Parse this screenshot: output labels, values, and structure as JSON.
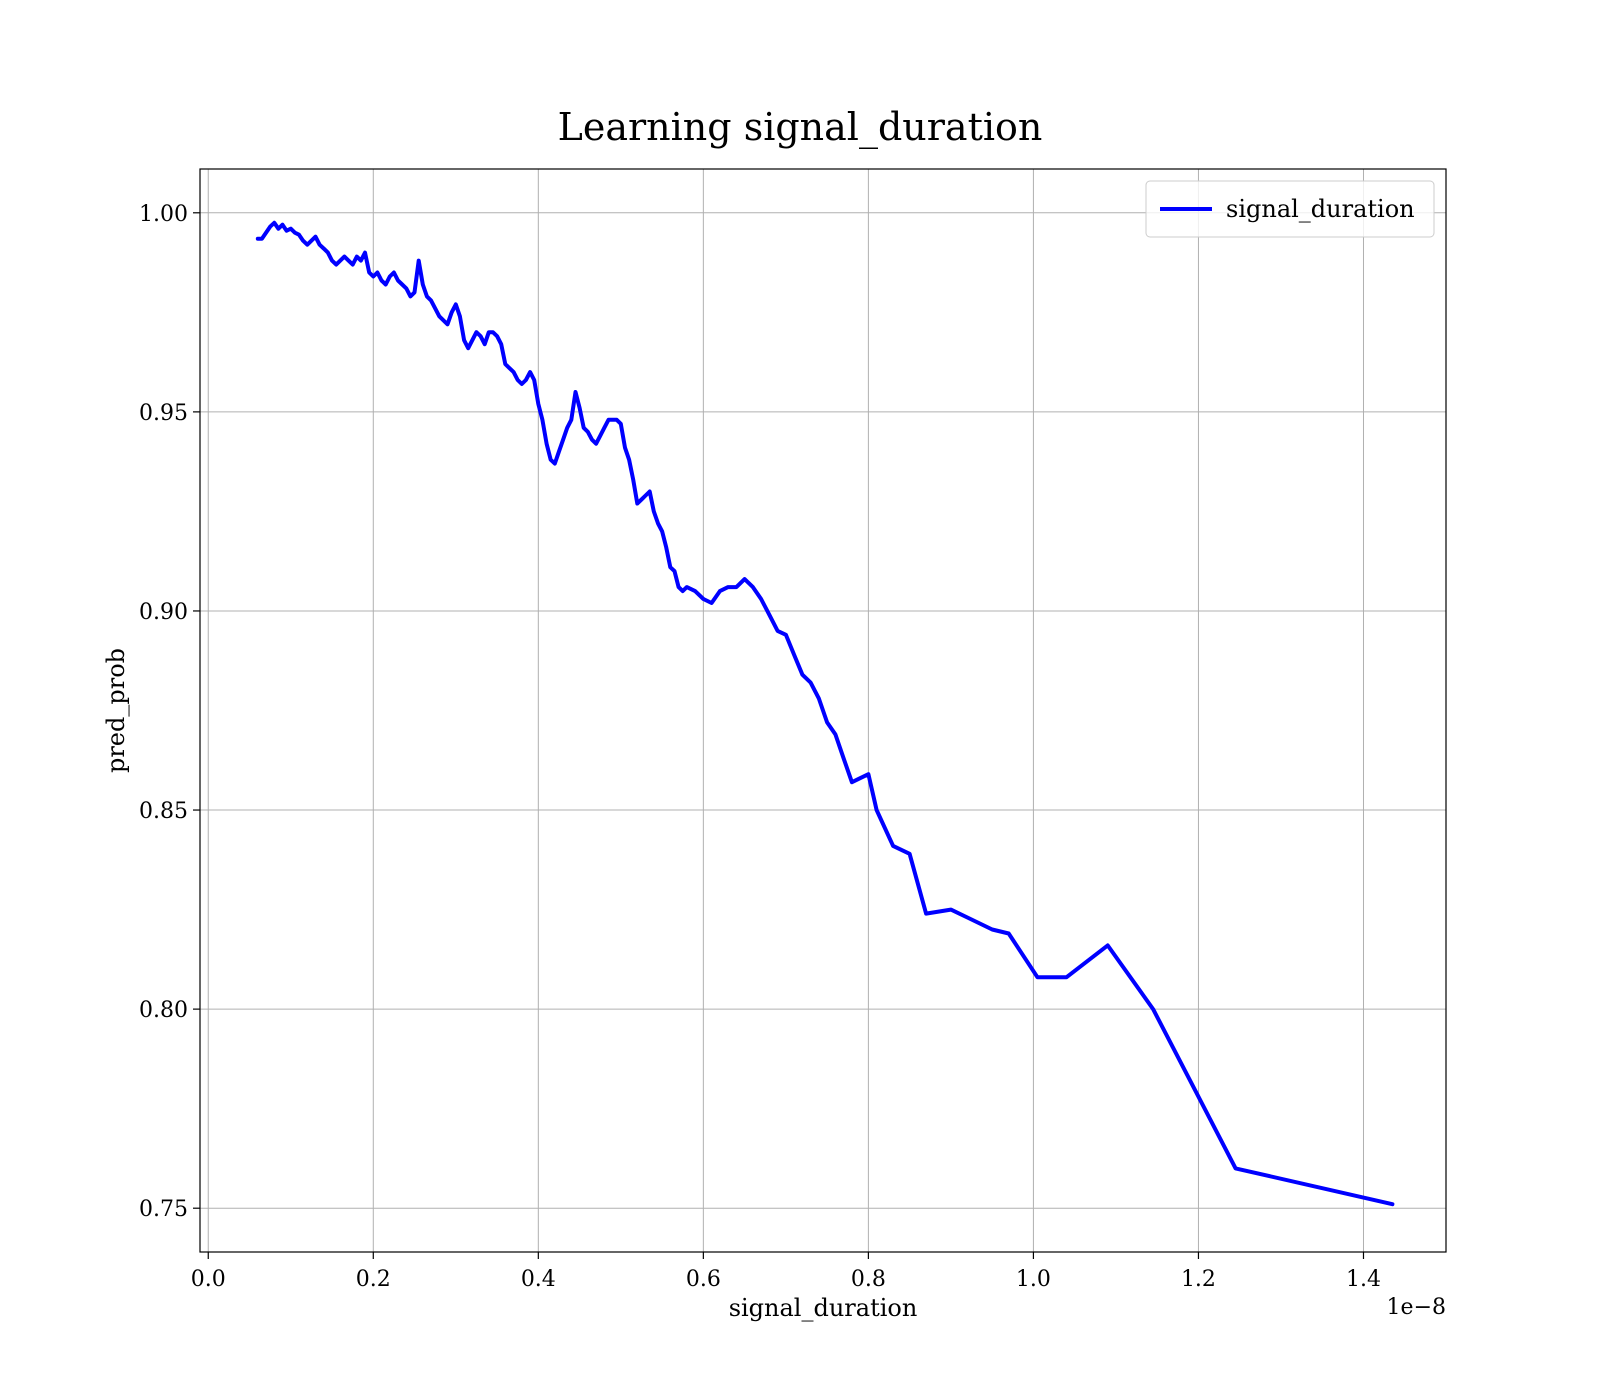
{
  "chart_data": {
    "type": "line",
    "title": "Learning signal_duration",
    "xlabel": "signal_duration",
    "ylabel": "pred_prob",
    "x_offset_text": "1e−8",
    "xlim": [
      -0.01,
      1.5
    ],
    "ylim": [
      0.739,
      1.011
    ],
    "x_ticks": [
      0.0,
      0.2,
      0.4,
      0.6,
      0.8,
      1.0,
      1.2,
      1.4
    ],
    "x_tick_labels": [
      "0.0",
      "0.2",
      "0.4",
      "0.6",
      "0.8",
      "1.0",
      "1.2",
      "1.4"
    ],
    "y_ticks": [
      0.75,
      0.8,
      0.85,
      0.9,
      0.95,
      1.0
    ],
    "y_tick_labels": [
      "0.75",
      "0.80",
      "0.85",
      "0.90",
      "0.95",
      "1.00"
    ],
    "grid": true,
    "legend": {
      "position": "top-right",
      "entries": [
        "signal_duration"
      ]
    },
    "series": [
      {
        "name": "signal_duration",
        "color": "#0000ff",
        "x": [
          0.06,
          0.065,
          0.07,
          0.075,
          0.08,
          0.085,
          0.09,
          0.095,
          0.1,
          0.105,
          0.11,
          0.115,
          0.12,
          0.125,
          0.13,
          0.135,
          0.14,
          0.145,
          0.15,
          0.155,
          0.16,
          0.165,
          0.17,
          0.175,
          0.18,
          0.185,
          0.19,
          0.195,
          0.2,
          0.205,
          0.21,
          0.215,
          0.22,
          0.225,
          0.23,
          0.235,
          0.24,
          0.245,
          0.25,
          0.255,
          0.26,
          0.265,
          0.27,
          0.275,
          0.28,
          0.285,
          0.29,
          0.295,
          0.3,
          0.305,
          0.31,
          0.315,
          0.32,
          0.325,
          0.33,
          0.335,
          0.34,
          0.345,
          0.35,
          0.355,
          0.36,
          0.365,
          0.37,
          0.375,
          0.38,
          0.385,
          0.39,
          0.395,
          0.4,
          0.405,
          0.41,
          0.415,
          0.42,
          0.425,
          0.43,
          0.435,
          0.44,
          0.445,
          0.45,
          0.455,
          0.46,
          0.465,
          0.47,
          0.475,
          0.48,
          0.485,
          0.49,
          0.495,
          0.5,
          0.505,
          0.51,
          0.515,
          0.52,
          0.525,
          0.53,
          0.535,
          0.54,
          0.545,
          0.55,
          0.555,
          0.56,
          0.565,
          0.57,
          0.575,
          0.58,
          0.59,
          0.6,
          0.61,
          0.62,
          0.63,
          0.64,
          0.65,
          0.66,
          0.67,
          0.68,
          0.69,
          0.7,
          0.71,
          0.72,
          0.73,
          0.74,
          0.75,
          0.76,
          0.77,
          0.78,
          0.79,
          0.8,
          0.81,
          0.83,
          0.85,
          0.87,
          0.9,
          0.92,
          0.95,
          0.97,
          1.005,
          1.04,
          1.09,
          1.145,
          1.245,
          1.435
        ],
        "y": [
          0.9935,
          0.9935,
          0.995,
          0.9965,
          0.9975,
          0.996,
          0.997,
          0.9955,
          0.996,
          0.995,
          0.9945,
          0.993,
          0.992,
          0.993,
          0.994,
          0.992,
          0.991,
          0.99,
          0.988,
          0.987,
          0.988,
          0.989,
          0.988,
          0.987,
          0.989,
          0.988,
          0.99,
          0.985,
          0.984,
          0.985,
          0.983,
          0.982,
          0.984,
          0.985,
          0.983,
          0.982,
          0.981,
          0.979,
          0.98,
          0.988,
          0.982,
          0.979,
          0.978,
          0.976,
          0.974,
          0.973,
          0.972,
          0.975,
          0.977,
          0.974,
          0.968,
          0.966,
          0.968,
          0.97,
          0.969,
          0.967,
          0.97,
          0.97,
          0.969,
          0.967,
          0.962,
          0.961,
          0.96,
          0.958,
          0.957,
          0.958,
          0.96,
          0.958,
          0.952,
          0.948,
          0.942,
          0.938,
          0.937,
          0.94,
          0.943,
          0.946,
          0.948,
          0.955,
          0.951,
          0.946,
          0.945,
          0.943,
          0.942,
          0.944,
          0.946,
          0.948,
          0.948,
          0.948,
          0.947,
          0.941,
          0.938,
          0.933,
          0.927,
          0.928,
          0.929,
          0.93,
          0.925,
          0.922,
          0.92,
          0.916,
          0.911,
          0.91,
          0.906,
          0.905,
          0.906,
          0.905,
          0.903,
          0.902,
          0.905,
          0.906,
          0.906,
          0.908,
          0.906,
          0.903,
          0.899,
          0.895,
          0.894,
          0.889,
          0.884,
          0.882,
          0.878,
          0.872,
          0.869,
          0.863,
          0.857,
          0.858,
          0.859,
          0.85,
          0.841,
          0.839,
          0.824,
          0.825,
          0.823,
          0.82,
          0.819,
          0.808,
          0.808,
          0.816,
          0.8,
          0.76,
          0.751
        ]
      }
    ]
  }
}
